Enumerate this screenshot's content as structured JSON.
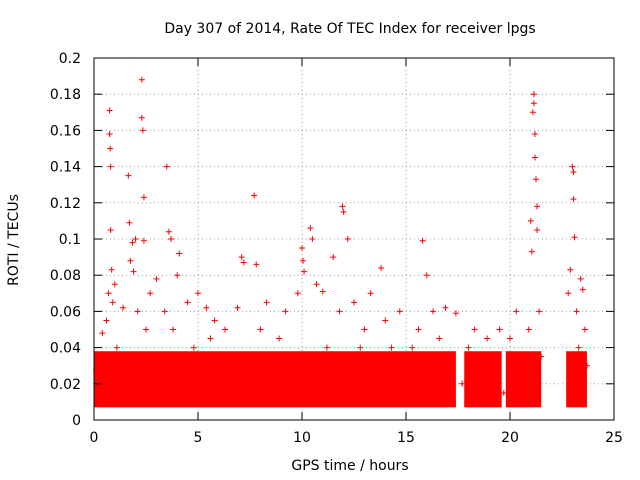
{
  "chart_data": {
    "type": "scatter",
    "title": "Day 307 of 2014, Rate Of TEC Index for receiver lpgs",
    "xlabel": "GPS time / hours",
    "ylabel": "ROTI / TECUs",
    "xlim": [
      0,
      25
    ],
    "ylim": [
      0,
      0.2
    ],
    "xticks": [
      0,
      5,
      10,
      15,
      20,
      25
    ],
    "yticks": [
      0,
      0.02,
      0.04,
      0.06,
      0.08,
      0.1,
      0.12,
      0.14,
      0.16,
      0.18,
      0.2
    ],
    "xtick_labels": [
      "0",
      "5",
      "10",
      "15",
      "20",
      "25"
    ],
    "ytick_labels": [
      "0",
      "0.02",
      "0.04",
      "0.06",
      "0.08",
      "0.1",
      "0.12",
      "0.14",
      "0.16",
      "0.18",
      "0.2"
    ],
    "grid": true,
    "marker": "plus",
    "marker_color": "#ff0000",
    "series": [
      {
        "name": "ROTI",
        "points": [
          [
            0.1,
            0.028
          ],
          [
            0.2,
            0.012
          ],
          [
            0.3,
            0.035
          ],
          [
            0.4,
            0.048
          ],
          [
            0.5,
            0.02
          ],
          [
            0.6,
            0.055
          ],
          [
            0.7,
            0.07
          ],
          [
            0.75,
            0.171
          ],
          [
            0.75,
            0.158
          ],
          [
            0.78,
            0.15
          ],
          [
            0.8,
            0.14
          ],
          [
            0.8,
            0.105
          ],
          [
            0.85,
            0.083
          ],
          [
            0.9,
            0.065
          ],
          [
            1.0,
            0.075
          ],
          [
            1.1,
            0.04
          ],
          [
            1.2,
            0.03
          ],
          [
            1.3,
            0.022
          ],
          [
            1.4,
            0.062
          ],
          [
            1.5,
            0.01
          ],
          [
            1.65,
            0.135
          ],
          [
            1.7,
            0.109
          ],
          [
            1.75,
            0.088
          ],
          [
            1.85,
            0.098
          ],
          [
            1.9,
            0.082
          ],
          [
            2.0,
            0.1
          ],
          [
            2.1,
            0.06
          ],
          [
            2.2,
            0.02
          ],
          [
            2.3,
            0.188
          ],
          [
            2.3,
            0.167
          ],
          [
            2.35,
            0.16
          ],
          [
            2.4,
            0.123
          ],
          [
            2.4,
            0.099
          ],
          [
            2.5,
            0.05
          ],
          [
            2.7,
            0.07
          ],
          [
            2.9,
            0.035
          ],
          [
            3.0,
            0.078
          ],
          [
            3.2,
            0.025
          ],
          [
            3.4,
            0.06
          ],
          [
            3.5,
            0.14
          ],
          [
            3.6,
            0.104
          ],
          [
            3.7,
            0.1
          ],
          [
            3.8,
            0.05
          ],
          [
            4.0,
            0.08
          ],
          [
            4.1,
            0.092
          ],
          [
            4.3,
            0.018
          ],
          [
            4.5,
            0.065
          ],
          [
            4.8,
            0.04
          ],
          [
            5.0,
            0.07
          ],
          [
            5.2,
            0.03
          ],
          [
            5.4,
            0.062
          ],
          [
            5.6,
            0.045
          ],
          [
            5.8,
            0.055
          ],
          [
            6.0,
            0.02
          ],
          [
            6.3,
            0.05
          ],
          [
            6.6,
            0.035
          ],
          [
            6.9,
            0.062
          ],
          [
            7.1,
            0.09
          ],
          [
            7.2,
            0.087
          ],
          [
            7.4,
            0.03
          ],
          [
            7.7,
            0.124
          ],
          [
            7.8,
            0.086
          ],
          [
            8.0,
            0.05
          ],
          [
            8.3,
            0.065
          ],
          [
            8.6,
            0.022
          ],
          [
            8.9,
            0.045
          ],
          [
            9.2,
            0.06
          ],
          [
            9.5,
            0.03
          ],
          [
            9.8,
            0.07
          ],
          [
            10.0,
            0.095
          ],
          [
            10.05,
            0.088
          ],
          [
            10.1,
            0.082
          ],
          [
            10.4,
            0.106
          ],
          [
            10.5,
            0.1
          ],
          [
            10.7,
            0.075
          ],
          [
            11.0,
            0.071
          ],
          [
            11.2,
            0.04
          ],
          [
            11.5,
            0.09
          ],
          [
            11.8,
            0.06
          ],
          [
            11.95,
            0.118
          ],
          [
            12.0,
            0.115
          ],
          [
            12.2,
            0.1
          ],
          [
            12.5,
            0.065
          ],
          [
            12.8,
            0.04
          ],
          [
            13.0,
            0.05
          ],
          [
            13.3,
            0.07
          ],
          [
            13.6,
            0.03
          ],
          [
            13.8,
            0.084
          ],
          [
            14.0,
            0.055
          ],
          [
            14.3,
            0.04
          ],
          [
            14.7,
            0.06
          ],
          [
            15.0,
            0.035
          ],
          [
            15.3,
            0.04
          ],
          [
            15.6,
            0.05
          ],
          [
            15.8,
            0.099
          ],
          [
            16.0,
            0.08
          ],
          [
            16.3,
            0.06
          ],
          [
            16.6,
            0.045
          ],
          [
            16.9,
            0.062
          ],
          [
            17.1,
            0.03
          ],
          [
            17.4,
            0.059
          ],
          [
            17.7,
            0.02
          ],
          [
            18.0,
            0.04
          ],
          [
            18.3,
            0.05
          ],
          [
            18.6,
            0.03
          ],
          [
            18.9,
            0.045
          ],
          [
            19.2,
            0.025
          ],
          [
            19.5,
            0.05
          ],
          [
            19.7,
            0.015
          ],
          [
            20.0,
            0.045
          ],
          [
            20.3,
            0.06
          ],
          [
            20.6,
            0.03
          ],
          [
            20.9,
            0.05
          ],
          [
            21.0,
            0.11
          ],
          [
            21.05,
            0.093
          ],
          [
            21.1,
            0.17
          ],
          [
            21.15,
            0.18
          ],
          [
            21.15,
            0.175
          ],
          [
            21.2,
            0.158
          ],
          [
            21.2,
            0.145
          ],
          [
            21.25,
            0.133
          ],
          [
            21.3,
            0.118
          ],
          [
            21.3,
            0.105
          ],
          [
            21.4,
            0.06
          ],
          [
            21.5,
            0.035
          ],
          [
            22.8,
            0.07
          ],
          [
            22.9,
            0.083
          ],
          [
            23.0,
            0.14
          ],
          [
            23.05,
            0.137
          ],
          [
            23.05,
            0.122
          ],
          [
            23.1,
            0.101
          ],
          [
            23.2,
            0.06
          ],
          [
            23.3,
            0.04
          ],
          [
            23.4,
            0.078
          ],
          [
            23.5,
            0.072
          ],
          [
            23.6,
            0.05
          ],
          [
            23.7,
            0.03
          ]
        ]
      }
    ]
  }
}
